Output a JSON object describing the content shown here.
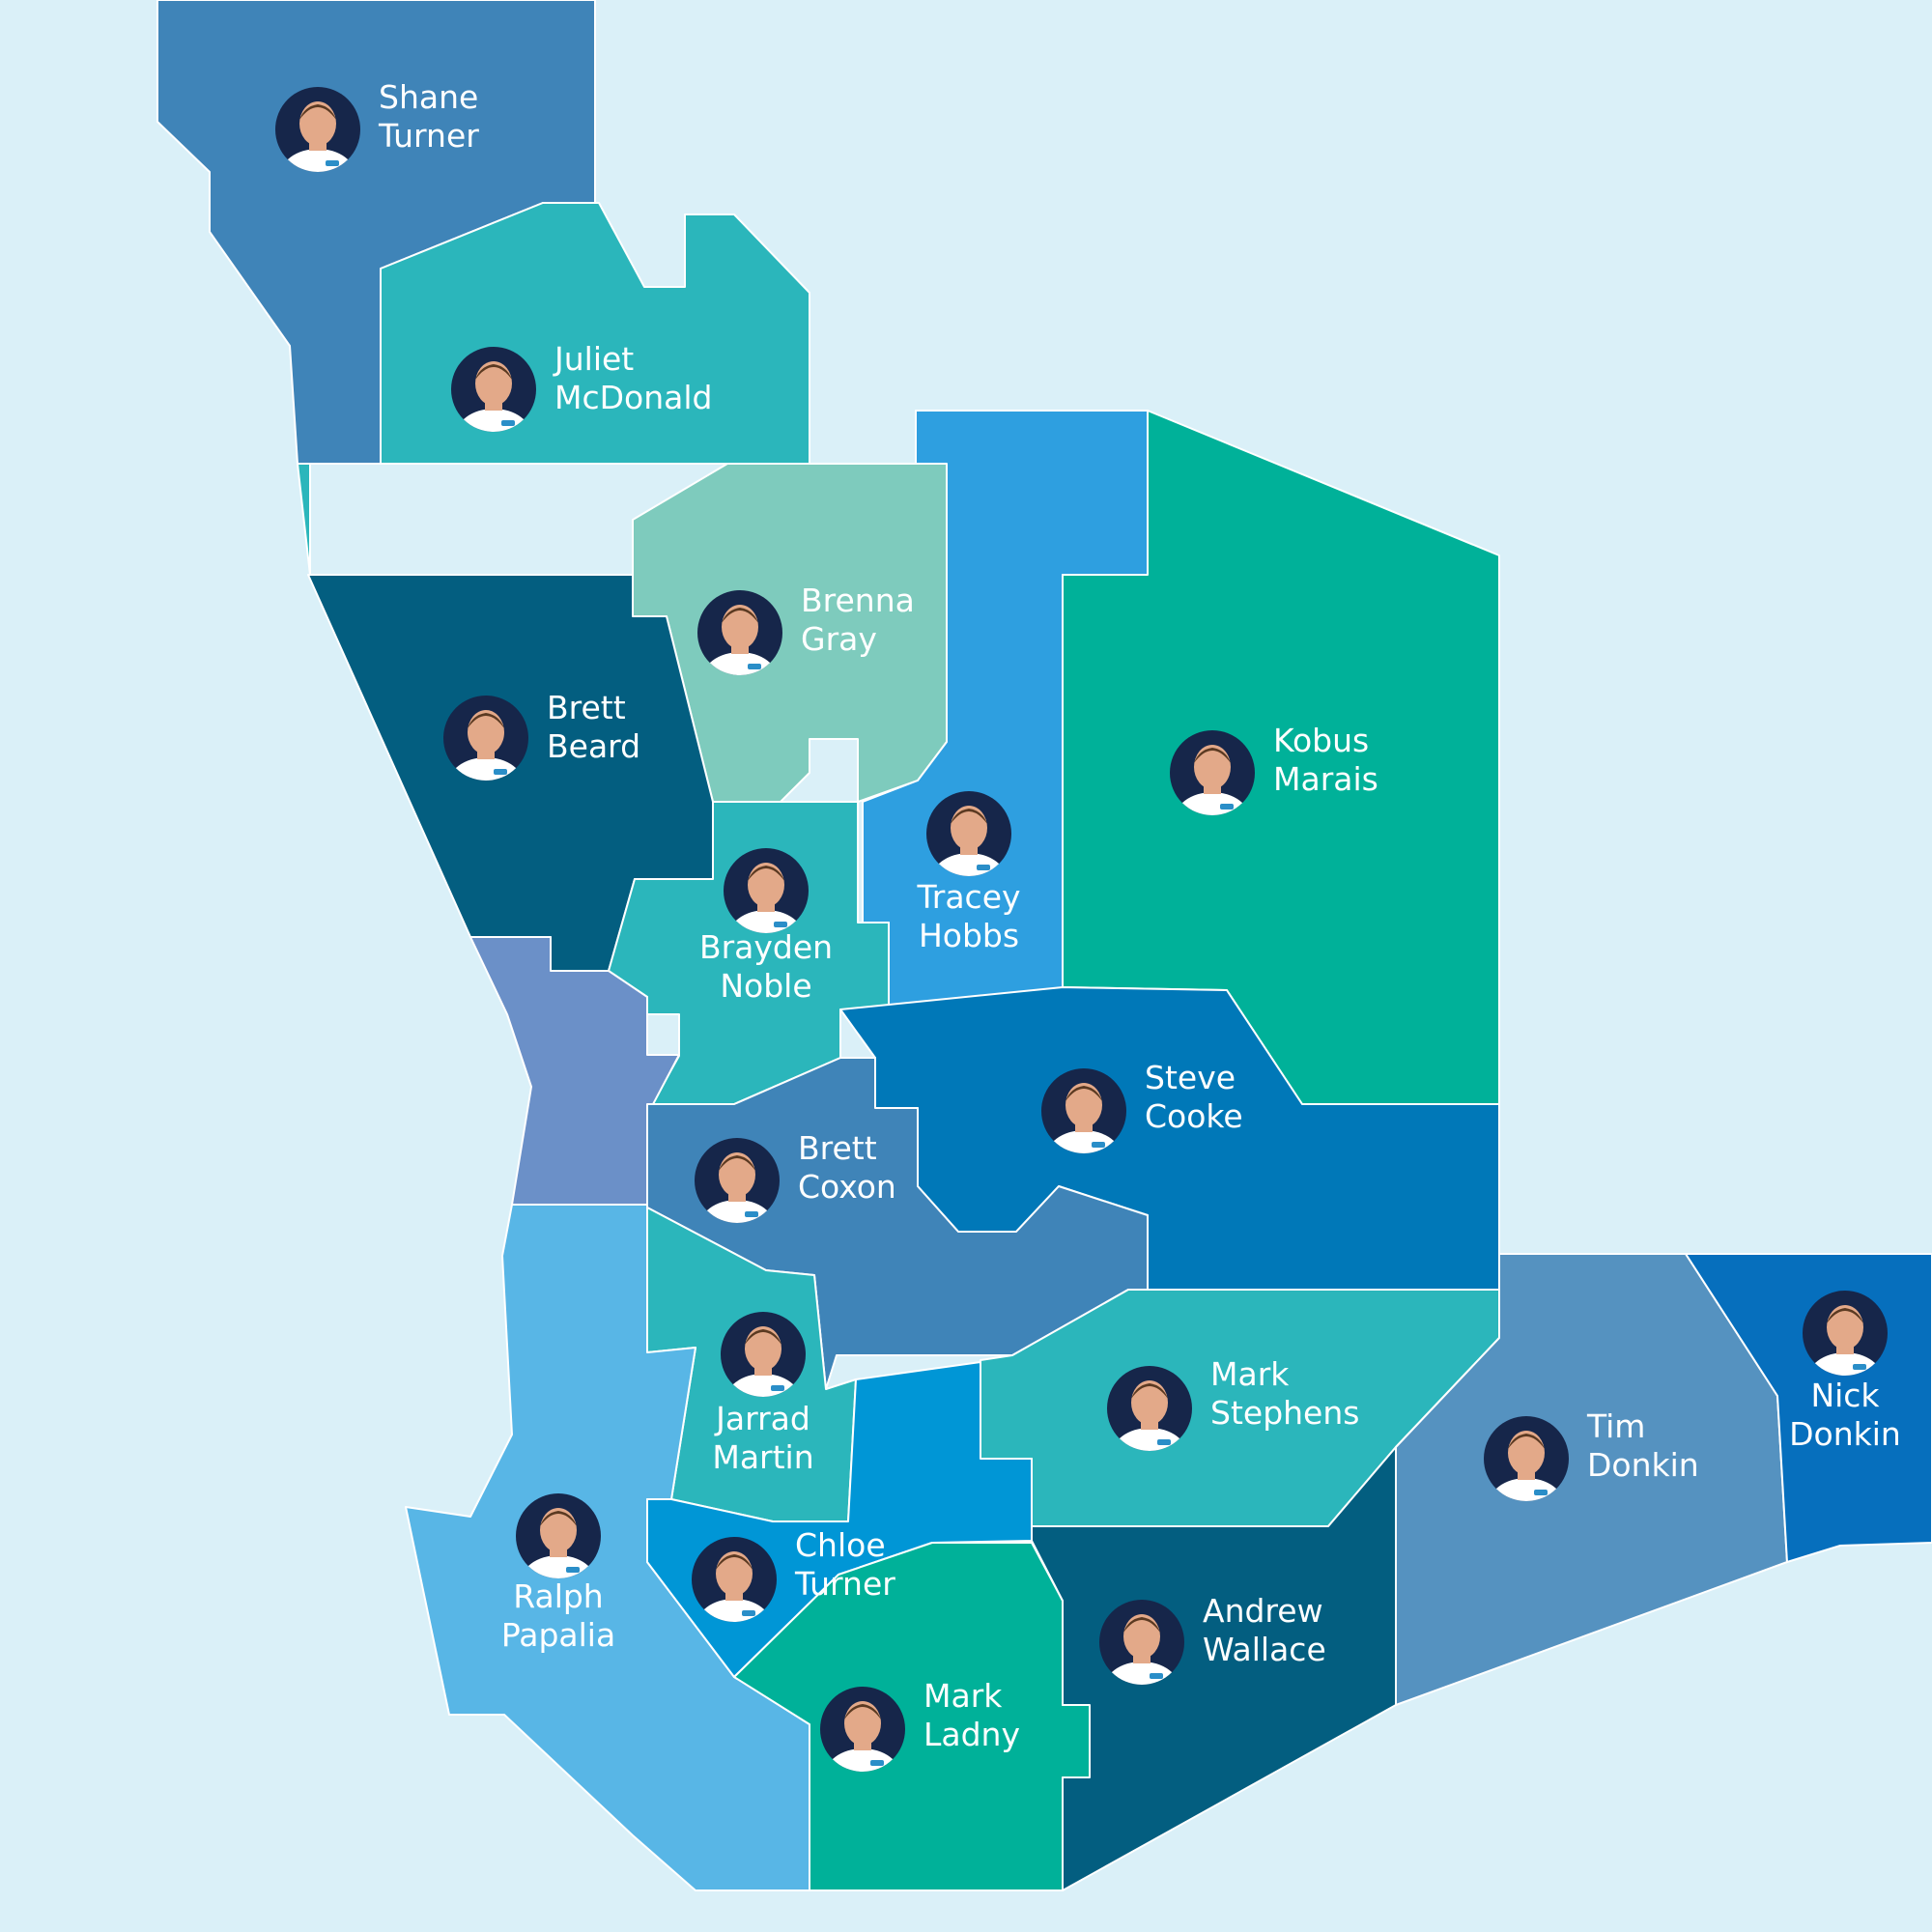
{
  "colors": {
    "ocean": "#daf0f8",
    "land_unassigned": "#f3f4f6",
    "boundary": "#ffffff",
    "label_text": "#ffffff",
    "avatar_background": "#16264a"
  },
  "territories": [
    {
      "id": "shane-turner",
      "first_name": "Shane",
      "last_name": "Turner",
      "color": "#3f84b8",
      "label_align": "start",
      "avatar_icon": "person-avatar-icon"
    },
    {
      "id": "juliet-mcdonald",
      "first_name": "Juliet",
      "last_name": "McDonald",
      "color": "#2bb6bb",
      "label_align": "start",
      "avatar_icon": "person-avatar-icon"
    },
    {
      "id": "brenna-gray",
      "first_name": "Brenna",
      "last_name": "Gray",
      "color": "#7ecbbd",
      "label_align": "start",
      "avatar_icon": "person-avatar-icon"
    },
    {
      "id": "brett-beard",
      "first_name": "Brett",
      "last_name": "Beard",
      "color": "#035e80",
      "label_align": "start",
      "avatar_icon": "person-avatar-icon"
    },
    {
      "id": "tracey-hobbs",
      "first_name": "Tracey",
      "last_name": "Hobbs",
      "color": "#2e9fe0",
      "label_align": "middle",
      "avatar_icon": "person-avatar-icon"
    },
    {
      "id": "kobus-marais",
      "first_name": "Kobus",
      "last_name": "Marais",
      "color": "#00b199",
      "label_align": "start",
      "avatar_icon": "person-avatar-icon"
    },
    {
      "id": "brayden-noble",
      "first_name": "Brayden",
      "last_name": "Noble",
      "color": "#2bb6bb",
      "label_align": "middle",
      "avatar_icon": "person-avatar-icon"
    },
    {
      "id": "unassigned-west",
      "first_name": "",
      "last_name": "",
      "color": "#6b90c8",
      "label_align": "start",
      "avatar_icon": ""
    },
    {
      "id": "steve-cooke",
      "first_name": "Steve",
      "last_name": "Cooke",
      "color": "#0078b8",
      "label_align": "start",
      "avatar_icon": "person-avatar-icon"
    },
    {
      "id": "brett-coxon",
      "first_name": "Brett",
      "last_name": "Coxon",
      "color": "#3f84b8",
      "label_align": "start",
      "avatar_icon": "person-avatar-icon"
    },
    {
      "id": "jarrad-martin",
      "first_name": "Jarrad",
      "last_name": "Martin",
      "color": "#2bb6bb",
      "label_align": "middle",
      "avatar_icon": "person-avatar-icon"
    },
    {
      "id": "ralph-papalia",
      "first_name": "Ralph",
      "last_name": "Papalia",
      "color": "#58b6e6",
      "label_align": "middle",
      "avatar_icon": "person-avatar-icon"
    },
    {
      "id": "mark-stephens",
      "first_name": "Mark",
      "last_name": "Stephens",
      "color": "#2bb6bb",
      "label_align": "start",
      "avatar_icon": "person-avatar-icon"
    },
    {
      "id": "chloe-turner",
      "first_name": "Chloe",
      "last_name": "Turner",
      "color": "#0096d6",
      "label_align": "start",
      "avatar_icon": "person-avatar-icon"
    },
    {
      "id": "mark-ladny",
      "first_name": "Mark",
      "last_name": "Ladny",
      "color": "#00b199",
      "label_align": "start",
      "avatar_icon": "person-avatar-icon"
    },
    {
      "id": "andrew-wallace",
      "first_name": "Andrew",
      "last_name": "Wallace",
      "color": "#035e80",
      "label_align": "start",
      "avatar_icon": "person-avatar-icon"
    },
    {
      "id": "tim-donkin",
      "first_name": "Tim",
      "last_name": "Donkin",
      "color": "#5592c0",
      "label_align": "start",
      "avatar_icon": "person-avatar-icon"
    },
    {
      "id": "nick-donkin",
      "first_name": "Nick",
      "last_name": "Donkin",
      "color": "#066fbd",
      "label_align": "middle",
      "avatar_icon": "person-avatar-icon"
    }
  ]
}
